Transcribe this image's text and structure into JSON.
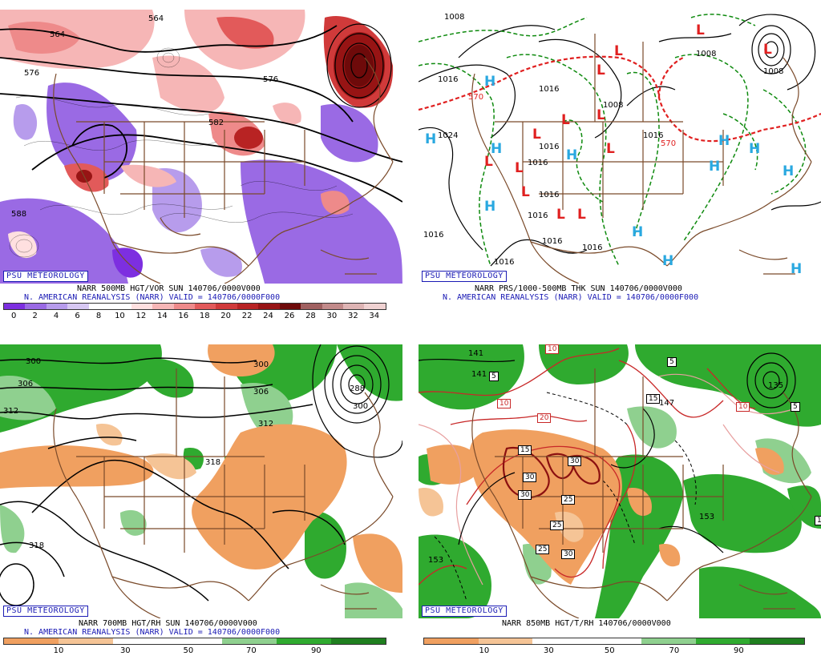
{
  "panels": {
    "vor": {
      "psu": "PSU METEOROLOGY",
      "caption1": "NARR 500MB HGT/VOR SUN 140706/0000V000",
      "caption2": "N. AMERICAN REANALYSIS (NARR) VALID = 140706/0000F000",
      "contour_labels": [
        "564",
        "576",
        "564",
        "576",
        "582",
        "588"
      ],
      "colorbar": {
        "colors": [
          "#7d2fe0",
          "#9a6ae4",
          "#b79cec",
          "#d7c8f3",
          "#ffffff",
          "#ffffff",
          "#ffe0e0",
          "#f6b6b6",
          "#ee8a8a",
          "#e25a5a",
          "#d03a3a",
          "#b82323",
          "#971414",
          "#6e0a0a",
          "#a06060",
          "#c28a8a",
          "#deb4b4",
          "#f0d2d2"
        ],
        "ticks": [
          "0",
          "2",
          "4",
          "6",
          "8",
          "10",
          "12",
          "14",
          "16",
          "18",
          "20",
          "22",
          "24",
          "26",
          "28",
          "30",
          "32",
          "34"
        ]
      }
    },
    "thk": {
      "psu": "PSU METEOROLOGY",
      "caption1": "NARR PRS/1000-500MB THK SUN 140706/0000V000",
      "caption2": "N. AMERICAN REANALYSIS (NARR) VALID = 140706/0000F000",
      "isobar_labels": [
        "1008",
        "1016",
        "1024",
        "1016",
        "1016",
        "1008",
        "1016",
        "1016",
        "1016",
        "1016",
        "1016",
        "1016",
        "1008",
        "1016",
        "1008",
        "1016"
      ],
      "thickness_labels": [
        "570",
        "570"
      ],
      "high_letter": "H",
      "low_letter": "L"
    },
    "rh700": {
      "psu": "PSU METEOROLOGY",
      "caption1": "NARR 700MB HGT/RH SUN 140706/0000V000",
      "caption2": "N. AMERICAN REANALYSIS (NARR) VALID = 140706/0000F000",
      "contour_labels": [
        "300",
        "306",
        "312",
        "300",
        "306",
        "312",
        "318",
        "318",
        "288",
        "300"
      ],
      "colorbar": {
        "colors": [
          "#f0a060",
          "#f5c496",
          "#ffffff",
          "#ffffff",
          "#8fd08f",
          "#2faa2f",
          "#1f7f1f"
        ],
        "ticks": [
          "10",
          "30",
          "50",
          "70",
          "90"
        ]
      }
    },
    "rh850": {
      "psu": "PSU METEOROLOGY",
      "caption1": "NARR 850MB HGT/T/RH 140706/0000V000",
      "contour_labels": [
        "141",
        "141",
        "147",
        "153",
        "153",
        "135"
      ],
      "temp_boxes": [
        "10",
        "5",
        "5",
        "10",
        "15",
        "20",
        "10",
        "5",
        "15",
        "30",
        "30",
        "30",
        "25",
        "25",
        "25",
        "30",
        "15"
      ],
      "colorbar": {
        "colors": [
          "#f0a060",
          "#f5c496",
          "#ffffff",
          "#ffffff",
          "#8fd08f",
          "#2faa2f",
          "#1f7f1f"
        ],
        "ticks": [
          "10",
          "30",
          "50",
          "70",
          "90"
        ]
      }
    }
  }
}
